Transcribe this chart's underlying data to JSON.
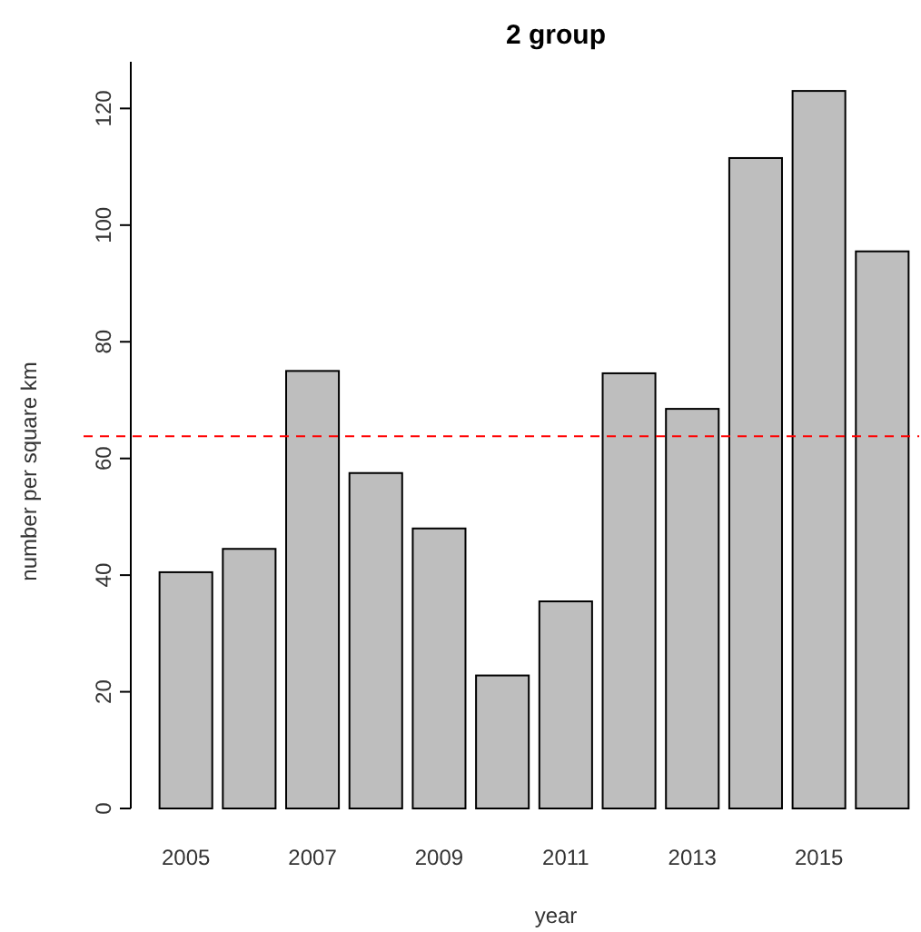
{
  "chart_data": {
    "type": "bar",
    "title": "2 group",
    "xlabel": "year",
    "ylabel": "number per square km",
    "categories": [
      "2005",
      null,
      "2007",
      null,
      "2009",
      null,
      "2011",
      null,
      "2013",
      null,
      "2015",
      null
    ],
    "values": [
      40.5,
      44.5,
      75,
      57.5,
      48,
      22.8,
      35.5,
      74.6,
      68.5,
      111.5,
      123,
      95.5
    ],
    "color": "#bebebe",
    "ylim": [
      0,
      128
    ],
    "yticks": [
      0,
      20,
      40,
      60,
      80,
      100,
      120
    ],
    "ref_lines": [
      {
        "axis": "y",
        "value": 63.8,
        "color": "#ff0000",
        "line_style": "dashed"
      }
    ],
    "grid": false
  }
}
